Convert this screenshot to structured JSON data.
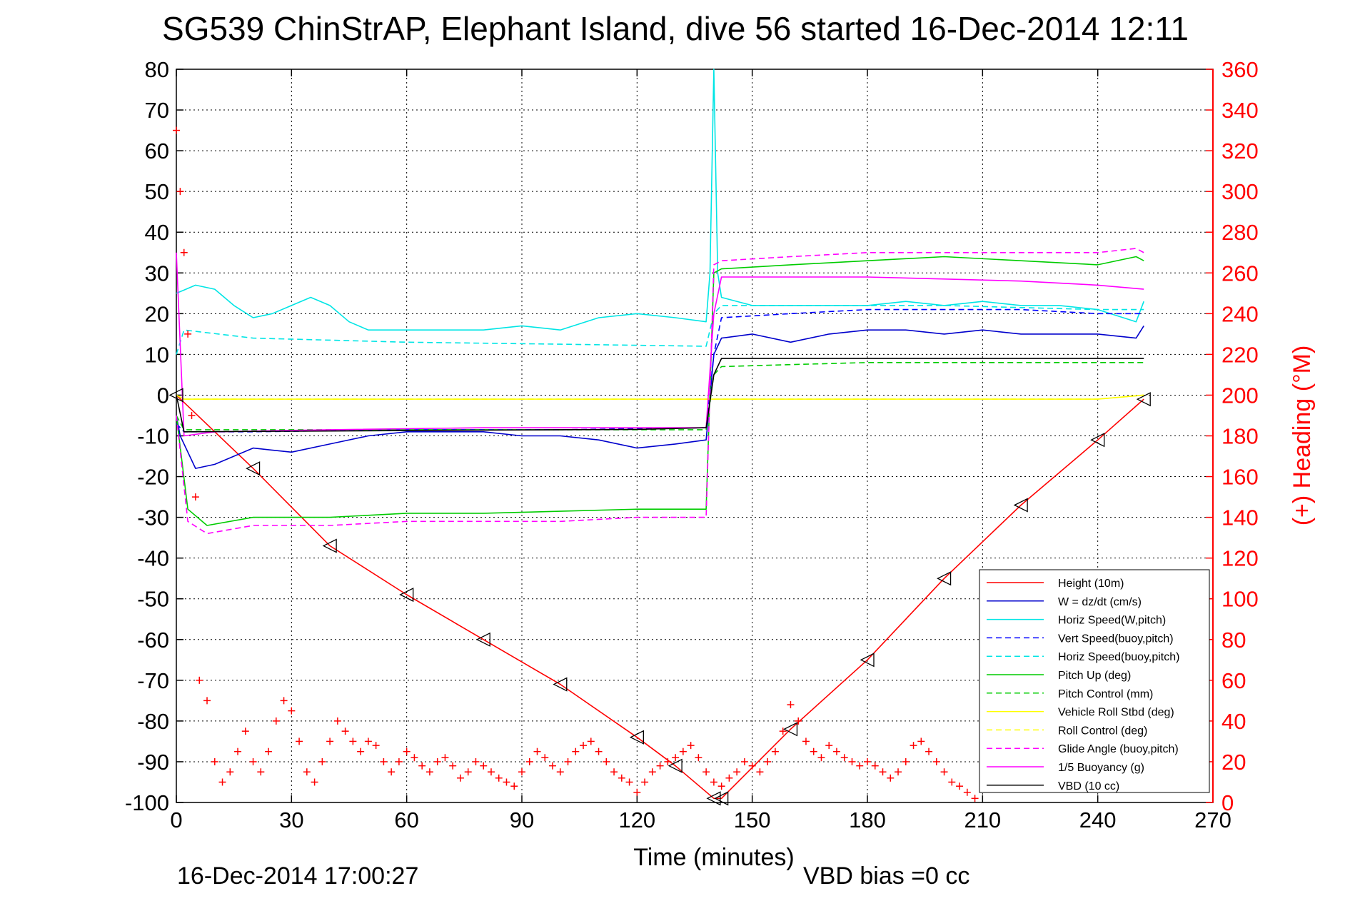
{
  "chart_data": {
    "type": "line",
    "title": "SG539 ChinStrAP, Elephant Island, dive 56 started 16-Dec-2014 12:11",
    "xlabel": "Time (minutes)",
    "ylabel_right": "(+) Heading (°M)",
    "footer_left": "16-Dec-2014 17:00:27",
    "footer_right": "VBD bias =0 cc",
    "xlim": [
      0,
      270
    ],
    "ylim": [
      -100,
      80
    ],
    "ylim_right": [
      0,
      360
    ],
    "x_ticks": [
      "0",
      "30",
      "60",
      "90",
      "120",
      "150",
      "180",
      "210",
      "240",
      "270"
    ],
    "y_ticks": [
      "80",
      "70",
      "60",
      "50",
      "40",
      "30",
      "20",
      "10",
      "0",
      "-10",
      "-20",
      "-30",
      "-40",
      "-50",
      "-60",
      "-70",
      "-80",
      "-90",
      "-100"
    ],
    "y_ticks_right": [
      "360",
      "340",
      "320",
      "300",
      "280",
      "260",
      "240",
      "220",
      "200",
      "180",
      "160",
      "140",
      "120",
      "100",
      "80",
      "60",
      "40",
      "20",
      "0"
    ],
    "grid": true,
    "legend_position": "bottom-right",
    "series": [
      {
        "name": "Height (10m)",
        "color": "#ff0000",
        "dash": false,
        "x": [
          0,
          20,
          40,
          60,
          80,
          100,
          120,
          130,
          140,
          142,
          160,
          180,
          200,
          220,
          240,
          252
        ],
        "y": [
          0,
          -18,
          -37,
          -49,
          -60,
          -71,
          -84,
          -91,
          -99,
          -99,
          -82,
          -65,
          -45,
          -27,
          -11,
          -1
        ]
      },
      {
        "name": "W = dz/dt (cm/s)",
        "color": "#0000cc",
        "dash": false,
        "x": [
          0,
          1,
          5,
          10,
          20,
          30,
          40,
          50,
          60,
          70,
          80,
          90,
          100,
          110,
          120,
          130,
          138,
          140,
          142,
          150,
          160,
          170,
          180,
          190,
          200,
          210,
          220,
          230,
          240,
          250,
          252
        ],
        "y": [
          -5,
          -10,
          -18,
          -17,
          -13,
          -14,
          -12,
          -10,
          -9,
          -9,
          -9,
          -10,
          -10,
          -11,
          -13,
          -12,
          -11,
          10,
          14,
          15,
          13,
          15,
          16,
          16,
          15,
          16,
          15,
          15,
          15,
          14,
          17
        ]
      },
      {
        "name": "Horiz Speed(W,pitch)",
        "color": "#00e5e5",
        "dash": false,
        "x": [
          0,
          5,
          10,
          15,
          20,
          25,
          30,
          35,
          40,
          45,
          50,
          60,
          70,
          80,
          90,
          100,
          110,
          120,
          130,
          138,
          139,
          140,
          141,
          142,
          150,
          160,
          170,
          180,
          190,
          200,
          210,
          220,
          230,
          240,
          250,
          252
        ],
        "y": [
          25,
          27,
          26,
          22,
          19,
          20,
          22,
          24,
          22,
          18,
          16,
          16,
          16,
          16,
          17,
          16,
          19,
          20,
          19,
          18,
          30,
          80,
          30,
          24,
          22,
          22,
          22,
          22,
          23,
          22,
          23,
          22,
          22,
          21,
          18,
          23
        ]
      },
      {
        "name": "Vert Speed(buoy,pitch)",
        "color": "#0000ff",
        "dash": true,
        "x": [
          0,
          2,
          20,
          60,
          100,
          138,
          140,
          142,
          160,
          180,
          200,
          220,
          240,
          252
        ],
        "y": [
          -7,
          -9,
          -9,
          -8.5,
          -8.5,
          -8,
          10,
          19,
          20,
          21,
          21,
          21,
          20,
          20
        ]
      },
      {
        "name": "Horiz Speed(buoy,pitch)",
        "color": "#00e5e5",
        "dash": true,
        "x": [
          0,
          2,
          20,
          60,
          100,
          138,
          140,
          142,
          160,
          180,
          200,
          220,
          240,
          252
        ],
        "y": [
          10,
          16,
          14,
          13,
          12.5,
          12,
          20,
          22,
          22,
          22,
          22,
          21.5,
          21,
          21
        ]
      },
      {
        "name": "Pitch Up (deg)",
        "color": "#00cc00",
        "dash": false,
        "x": [
          0,
          3,
          8,
          20,
          40,
          60,
          80,
          100,
          120,
          138,
          140,
          142,
          160,
          180,
          200,
          220,
          240,
          250,
          252
        ],
        "y": [
          -5,
          -28,
          -32,
          -30,
          -30,
          -29,
          -29,
          -28.5,
          -28,
          -28,
          30,
          31,
          32,
          33,
          34,
          33,
          32,
          34,
          33
        ]
      },
      {
        "name": "Pitch Control (mm)",
        "color": "#00cc00",
        "dash": true,
        "x": [
          0,
          2,
          20,
          60,
          100,
          138,
          140,
          142,
          160,
          180,
          200,
          220,
          240,
          252
        ],
        "y": [
          -5,
          -8.5,
          -8.5,
          -8.5,
          -8.5,
          -8.5,
          5,
          7,
          7.5,
          8,
          8,
          8,
          8,
          8
        ]
      },
      {
        "name": "Vehicle Roll Stbd (deg)",
        "color": "#ffff00",
        "dash": false,
        "x": [
          0,
          2,
          20,
          40,
          60,
          80,
          100,
          120,
          138,
          142,
          160,
          180,
          200,
          220,
          240,
          252
        ],
        "y": [
          0,
          -1,
          -1,
          -1,
          -1,
          -1,
          -1,
          -1,
          -1,
          -1,
          -1,
          -1,
          -1,
          -1,
          -1,
          0
        ]
      },
      {
        "name": "Roll Control (deg)",
        "color": "#ffff00",
        "dash": true,
        "x": [
          0,
          2,
          20,
          40,
          60,
          80,
          100,
          120,
          138,
          142,
          160,
          180,
          200,
          220,
          240,
          252
        ],
        "y": [
          0,
          -1,
          -1,
          -1,
          -1,
          -1,
          -1,
          -1,
          -1,
          -1,
          -1,
          -1,
          -1,
          -1,
          -1,
          0
        ]
      },
      {
        "name": "Glide Angle (buoy,pitch)",
        "color": "#ff00ff",
        "dash": true,
        "x": [
          0,
          3,
          8,
          20,
          40,
          60,
          80,
          100,
          120,
          138,
          140,
          142,
          160,
          180,
          200,
          220,
          240,
          250,
          252
        ],
        "y": [
          -5,
          -31,
          -34,
          -32,
          -32,
          -31,
          -31,
          -31,
          -30,
          -30,
          32,
          33,
          34,
          35,
          35,
          35,
          35,
          36,
          35
        ]
      },
      {
        "name": "1/5 Buoyancy (g)",
        "color": "#ff00ff",
        "dash": false,
        "x": [
          0,
          2,
          10,
          40,
          80,
          120,
          138,
          140,
          142,
          160,
          180,
          200,
          220,
          240,
          252
        ],
        "y": [
          35,
          -10,
          -9,
          -8.5,
          -8,
          -8,
          -8,
          20,
          29,
          29,
          29,
          28.5,
          28,
          27,
          26
        ]
      },
      {
        "name": "VBD (10 cc)",
        "color": "#000000",
        "dash": false,
        "x": [
          0,
          2,
          40,
          80,
          120,
          138,
          140,
          142,
          180,
          220,
          252
        ],
        "y": [
          0,
          -9,
          -8.8,
          -8.6,
          -8.4,
          -8,
          5,
          9,
          9,
          9,
          9
        ]
      }
    ],
    "heading_series": {
      "name": "Heading (deg)",
      "color": "#ff0000",
      "marker": "+",
      "axis": "right",
      "x": [
        0,
        1,
        2,
        3,
        4,
        5,
        6,
        8,
        10,
        12,
        14,
        16,
        18,
        20,
        22,
        24,
        26,
        28,
        30,
        32,
        34,
        36,
        38,
        40,
        42,
        44,
        46,
        48,
        50,
        52,
        54,
        56,
        58,
        60,
        62,
        64,
        66,
        68,
        70,
        72,
        74,
        76,
        78,
        80,
        82,
        84,
        86,
        88,
        90,
        92,
        94,
        96,
        98,
        100,
        102,
        104,
        106,
        108,
        110,
        112,
        114,
        116,
        118,
        120,
        122,
        124,
        126,
        128,
        130,
        132,
        134,
        136,
        138,
        140,
        142,
        144,
        146,
        148,
        150,
        152,
        154,
        156,
        158,
        160,
        162,
        164,
        166,
        168,
        170,
        172,
        174,
        176,
        178,
        180,
        182,
        184,
        186,
        188,
        190,
        192,
        194,
        196,
        198,
        200,
        202,
        204,
        206,
        208
      ],
      "y": [
        330,
        300,
        270,
        230,
        190,
        150,
        60,
        50,
        20,
        10,
        15,
        25,
        35,
        20,
        15,
        25,
        40,
        50,
        45,
        30,
        15,
        10,
        20,
        30,
        40,
        35,
        30,
        25,
        30,
        28,
        20,
        15,
        20,
        25,
        22,
        18,
        15,
        20,
        22,
        18,
        12,
        15,
        20,
        18,
        15,
        12,
        10,
        8,
        15,
        20,
        25,
        22,
        18,
        15,
        20,
        25,
        28,
        30,
        25,
        20,
        15,
        12,
        10,
        5,
        10,
        15,
        18,
        20,
        22,
        25,
        28,
        22,
        15,
        10,
        8,
        12,
        15,
        20,
        18,
        15,
        20,
        25,
        35,
        48,
        40,
        30,
        25,
        22,
        28,
        25,
        22,
        20,
        18,
        20,
        18,
        15,
        12,
        15,
        20,
        28,
        30,
        25,
        20,
        15,
        10,
        8,
        5,
        2
      ]
    }
  }
}
